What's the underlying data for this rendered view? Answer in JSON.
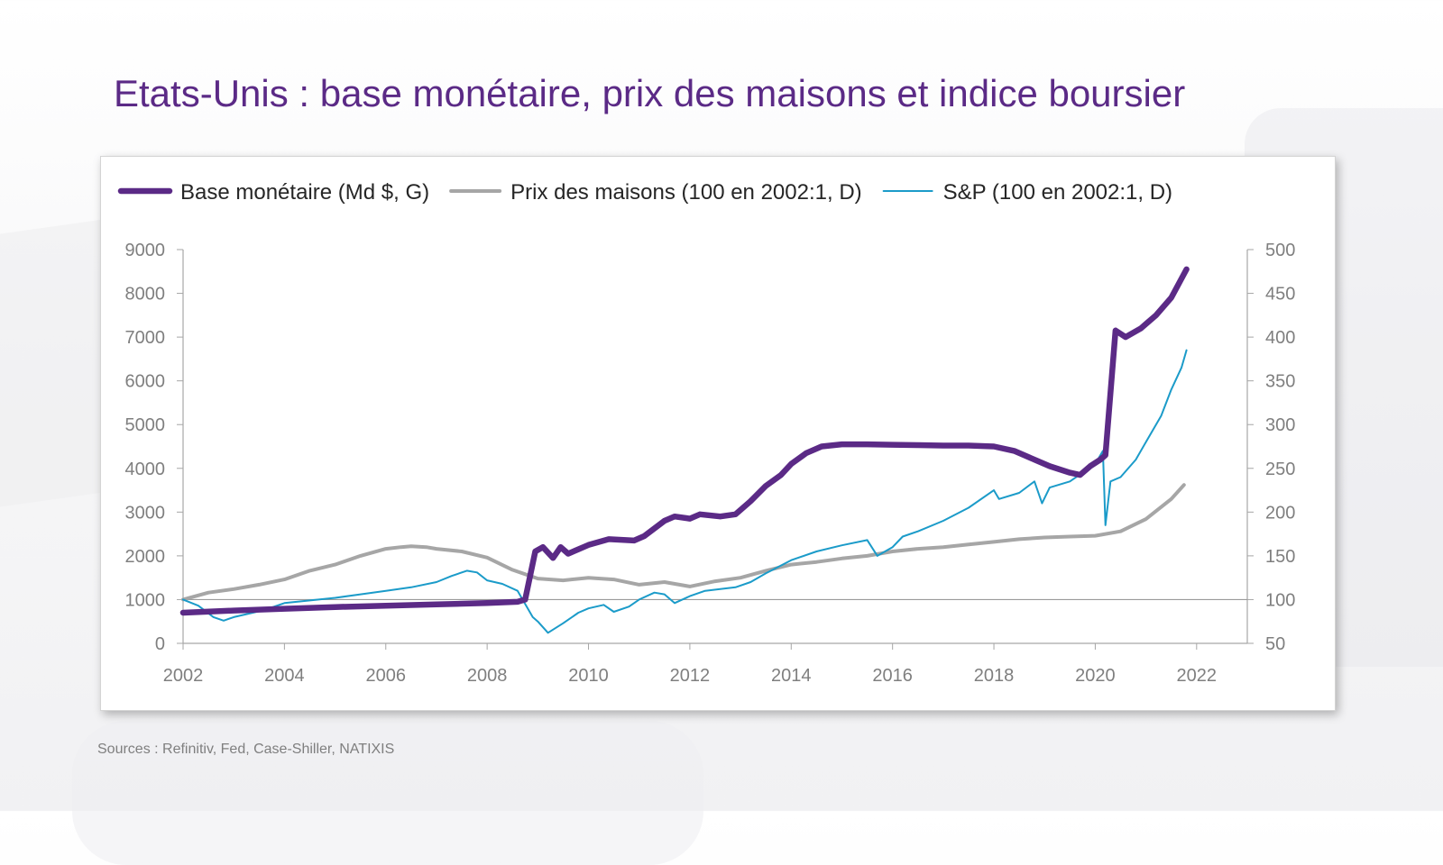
{
  "slide": {
    "title": "Etats-Unis : base monétaire, prix des maisons et indice boursier",
    "source": "Sources : Refinitiv, Fed, Case-Shiller, NATIXIS"
  },
  "chart_data": {
    "type": "line",
    "title": "",
    "legend_position": "top",
    "grid": false,
    "x_axis": {
      "range": [
        2002,
        2023
      ],
      "ticks": [
        "2002",
        "2004",
        "2006",
        "2008",
        "2010",
        "2012",
        "2014",
        "2016",
        "2018",
        "2020",
        "2022"
      ]
    },
    "y_left": {
      "range": [
        0,
        9000
      ],
      "ticks": [
        "0",
        "1000",
        "2000",
        "3000",
        "4000",
        "5000",
        "6000",
        "7000",
        "8000",
        "9000"
      ]
    },
    "y_right": {
      "range": [
        50,
        500
      ],
      "ticks": [
        "50",
        "100",
        "150",
        "200",
        "250",
        "300",
        "350",
        "400",
        "450",
        "500"
      ],
      "reference_line": 100
    },
    "series": [
      {
        "name": "Base monétaire (Md $, G)",
        "axis": "left",
        "color": "#5b2a86",
        "x": [
          2002.0,
          2003.0,
          2004.0,
          2005.0,
          2006.0,
          2007.0,
          2008.0,
          2008.6,
          2008.75,
          2008.95,
          2009.1,
          2009.3,
          2009.45,
          2009.6,
          2009.8,
          2010.0,
          2010.4,
          2010.9,
          2011.1,
          2011.5,
          2011.7,
          2012.0,
          2012.2,
          2012.6,
          2012.9,
          2013.2,
          2013.5,
          2013.8,
          2014.0,
          2014.3,
          2014.6,
          2015.0,
          2015.5,
          2016.0,
          2016.5,
          2017.0,
          2017.5,
          2018.0,
          2018.4,
          2018.8,
          2019.1,
          2019.5,
          2019.7,
          2019.9,
          2020.1,
          2020.2,
          2020.4,
          2020.6,
          2020.9,
          2021.2,
          2021.5,
          2021.8
        ],
        "values": [
          700,
          750,
          790,
          830,
          860,
          890,
          920,
          950,
          1000,
          2100,
          2200,
          1950,
          2200,
          2050,
          2150,
          2250,
          2380,
          2350,
          2450,
          2800,
          2900,
          2850,
          2950,
          2900,
          2950,
          3250,
          3600,
          3850,
          4100,
          4350,
          4500,
          4550,
          4550,
          4540,
          4530,
          4520,
          4520,
          4500,
          4400,
          4200,
          4050,
          3900,
          3850,
          4050,
          4200,
          4300,
          7150,
          7000,
          7200,
          7500,
          7900,
          8550
        ]
      },
      {
        "name": "Prix des maisons (100 en 2002:1, D)",
        "axis": "right",
        "color": "#a6a6a6",
        "x": [
          2002.0,
          2002.5,
          2003.0,
          2003.5,
          2004.0,
          2004.5,
          2005.0,
          2005.5,
          2006.0,
          2006.3,
          2006.5,
          2006.8,
          2007.0,
          2007.5,
          2008.0,
          2008.5,
          2009.0,
          2009.5,
          2010.0,
          2010.5,
          2011.0,
          2011.5,
          2012.0,
          2012.5,
          2013.0,
          2013.5,
          2014.0,
          2014.5,
          2015.0,
          2015.5,
          2016.0,
          2016.5,
          2017.0,
          2017.5,
          2018.0,
          2018.5,
          2019.0,
          2019.5,
          2020.0,
          2020.5,
          2021.0,
          2021.5,
          2021.75
        ],
        "values": [
          100,
          108,
          112,
          117,
          123,
          133,
          140,
          150,
          158,
          160,
          161,
          160,
          158,
          155,
          148,
          134,
          124,
          122,
          125,
          123,
          117,
          120,
          115,
          121,
          125,
          133,
          140,
          143,
          147,
          150,
          155,
          158,
          160,
          163,
          166,
          169,
          171,
          172,
          173,
          178,
          192,
          215,
          231
        ]
      },
      {
        "name": "S&P (100 en 2002:1, D)",
        "axis": "right",
        "color": "#1b9bc9",
        "x": [
          2002.0,
          2002.3,
          2002.6,
          2002.8,
          2003.0,
          2003.3,
          2003.6,
          2004.0,
          2004.5,
          2005.0,
          2005.5,
          2006.0,
          2006.5,
          2007.0,
          2007.3,
          2007.6,
          2007.8,
          2008.0,
          2008.3,
          2008.6,
          2008.9,
          2009.0,
          2009.2,
          2009.5,
          2009.8,
          2010.0,
          2010.3,
          2010.5,
          2010.8,
          2011.0,
          2011.3,
          2011.5,
          2011.7,
          2012.0,
          2012.3,
          2012.6,
          2012.9,
          2013.2,
          2013.5,
          2014.0,
          2014.5,
          2015.0,
          2015.5,
          2015.7,
          2016.0,
          2016.2,
          2016.5,
          2017.0,
          2017.5,
          2018.0,
          2018.1,
          2018.5,
          2018.8,
          2018.95,
          2019.1,
          2019.5,
          2020.0,
          2020.15,
          2020.2,
          2020.3,
          2020.5,
          2020.8,
          2021.0,
          2021.3,
          2021.5,
          2021.7,
          2021.8
        ],
        "values": [
          100,
          93,
          80,
          76,
          80,
          84,
          88,
          96,
          99,
          102,
          106,
          110,
          114,
          120,
          127,
          133,
          131,
          122,
          118,
          110,
          80,
          75,
          62,
          73,
          85,
          90,
          94,
          86,
          92,
          100,
          108,
          106,
          96,
          104,
          110,
          112,
          114,
          120,
          130,
          145,
          155,
          162,
          168,
          150,
          160,
          172,
          178,
          190,
          205,
          225,
          215,
          222,
          235,
          210,
          228,
          235,
          255,
          270,
          185,
          235,
          240,
          260,
          280,
          310,
          340,
          365,
          385
        ]
      }
    ]
  }
}
